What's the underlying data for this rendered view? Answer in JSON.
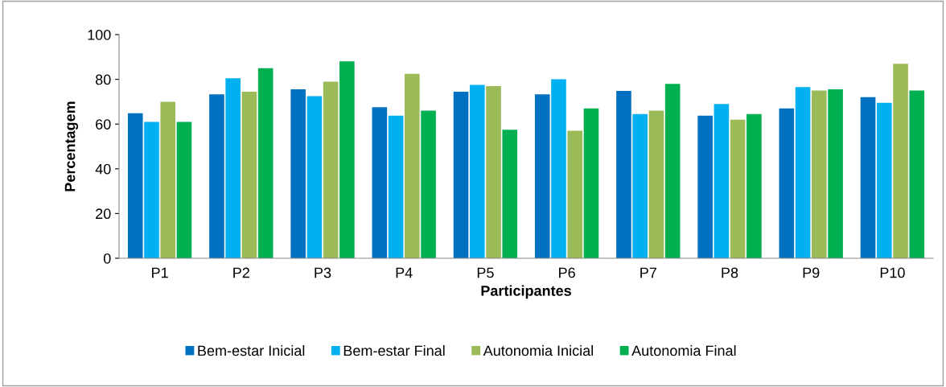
{
  "chart_data": {
    "type": "bar",
    "xlabel": "Participantes",
    "ylabel": "Percentagem",
    "categories": [
      "P1",
      "P2",
      "P3",
      "P4",
      "P5",
      "P6",
      "P7",
      "P8",
      "P9",
      "P10"
    ],
    "series": [
      {
        "name": "Bem-estar Inicial",
        "color": "#0070c0",
        "values": [
          64.8,
          73.3,
          75.5,
          67.5,
          74.5,
          73.3,
          74.8,
          63.8,
          67,
          72
        ]
      },
      {
        "name": "Bem-estar Final",
        "color": "#00b0f0",
        "values": [
          61,
          80.5,
          72.5,
          63.8,
          77.5,
          80,
          64.5,
          69,
          76.5,
          69.5
        ]
      },
      {
        "name": "Autonomia Inicial",
        "color": "#9bbb59",
        "values": [
          70,
          74.5,
          79,
          82.5,
          77,
          57,
          66,
          62,
          75,
          87
        ]
      },
      {
        "name": "Autonomia Final",
        "color": "#00b050",
        "values": [
          61,
          85,
          88,
          66,
          57.5,
          67,
          78,
          64.5,
          75.5,
          75
        ]
      }
    ],
    "ylim": [
      0,
      100
    ],
    "yticks": [
      0,
      20,
      40,
      60,
      80,
      100
    ],
    "grid": false,
    "legend": "bottom"
  }
}
